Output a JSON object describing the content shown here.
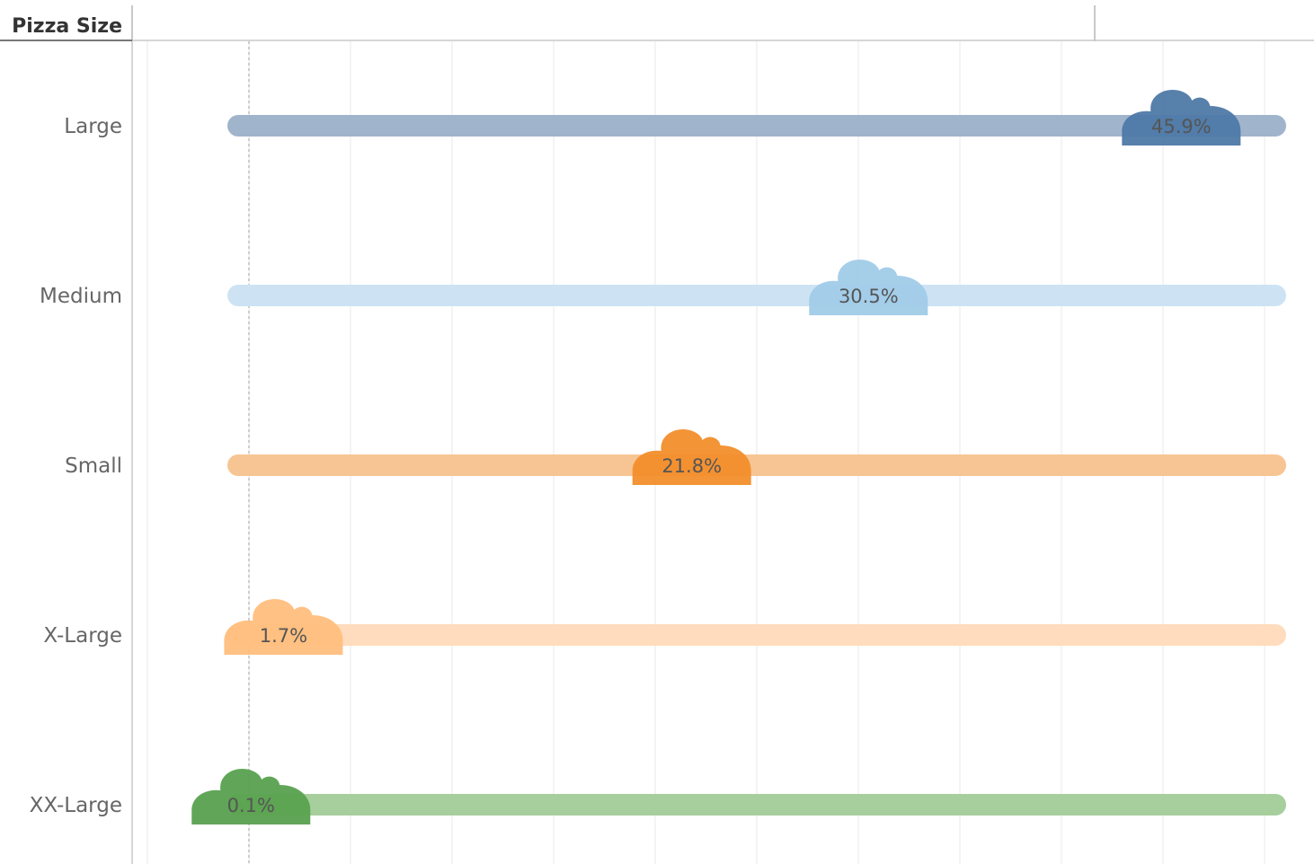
{
  "header": {
    "dimension_label": "Pizza Size"
  },
  "chart_data": {
    "type": "bar",
    "categories": [
      "Large",
      "Medium",
      "Small",
      "X-Large",
      "XX-Large"
    ],
    "values": [
      45.9,
      30.5,
      21.8,
      1.7,
      0.1
    ],
    "data_labels": [
      "45.9%",
      "30.5%",
      "21.8%",
      "1.7%",
      "0.1%"
    ],
    "unit": "%",
    "xlim": [
      -5,
      50
    ],
    "x_gridlines": [
      -5,
      0,
      5,
      10,
      15,
      20,
      25,
      30,
      35,
      40,
      45,
      50,
      55
    ],
    "track_full": 50,
    "reference_line": 0,
    "grid": true,
    "colors": {
      "Large": {
        "marker": "#4e79a7",
        "track": "#a0b4cc"
      },
      "Medium": {
        "marker": "#a0cbe8",
        "track": "#cde3f4"
      },
      "Small": {
        "marker": "#f28e2b",
        "track": "#f7c594"
      },
      "X-Large": {
        "marker": "#ffbe7d",
        "track": "#ffdcbd"
      },
      "XX-Large": {
        "marker": "#59a14f",
        "track": "#a6cf9d"
      }
    }
  }
}
